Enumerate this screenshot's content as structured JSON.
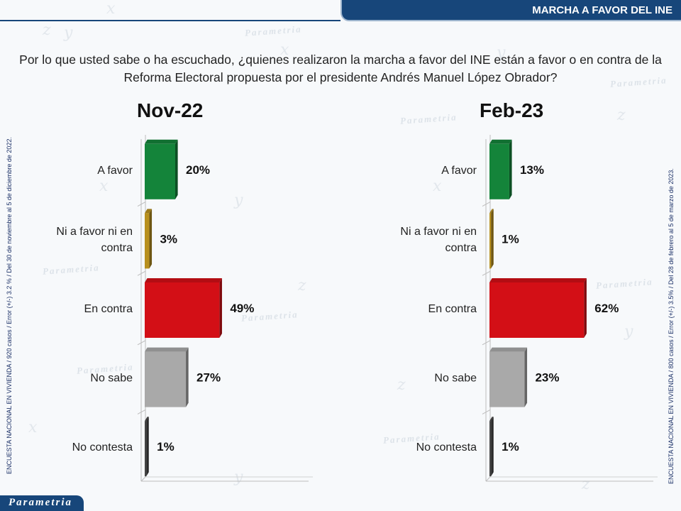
{
  "header": {
    "title": "MARCHA A FAVOR DEL INE"
  },
  "question": "Por lo que usted sabe o ha escuchado, ¿quienes realizaron la marcha a favor del INE están a favor o en contra de la Reforma Electoral propuesta por el presidente Andrés Manuel López Obrador?",
  "notes": {
    "left": "ENCUESTA NACIONAL EN VIVIENDA / 920 casos / Error (+/-) 3.2 % / Del 30 de noviembre al 5 de diciembre de 2022.",
    "right": "ENCUESTA NACIONAL EN VIVIENDA / 800 casos / Error (+/-) 3.5% / Del 28 de febrero al 5 de marzo de 2023."
  },
  "logo": {
    "text": "Parametria"
  },
  "background": {
    "watermark": "Parametria"
  },
  "chart_data": [
    {
      "type": "bar",
      "orientation": "horizontal",
      "title": "Nov-22",
      "categories": [
        "A favor",
        "Ni a favor ni en contra",
        "En contra",
        "No sabe",
        "No contesta"
      ],
      "values": [
        20,
        3,
        49,
        27,
        1
      ],
      "value_labels": [
        "20%",
        "3%",
        "49%",
        "27%",
        "1%"
      ],
      "colors": [
        "#14843a",
        "#b8901e",
        "#d30f16",
        "#a9a9a9",
        "#444444"
      ],
      "xlim": [
        0,
        100
      ],
      "grid": false
    },
    {
      "type": "bar",
      "orientation": "horizontal",
      "title": "Feb-23",
      "categories": [
        "A favor",
        "Ni a favor ni en contra",
        "En contra",
        "No sabe",
        "No contesta"
      ],
      "values": [
        13,
        1,
        62,
        23,
        1
      ],
      "value_labels": [
        "13%",
        "1%",
        "62%",
        "23%",
        "1%"
      ],
      "colors": [
        "#14843a",
        "#b8901e",
        "#d30f16",
        "#a9a9a9",
        "#444444"
      ],
      "xlim": [
        0,
        100
      ],
      "grid": false
    }
  ]
}
